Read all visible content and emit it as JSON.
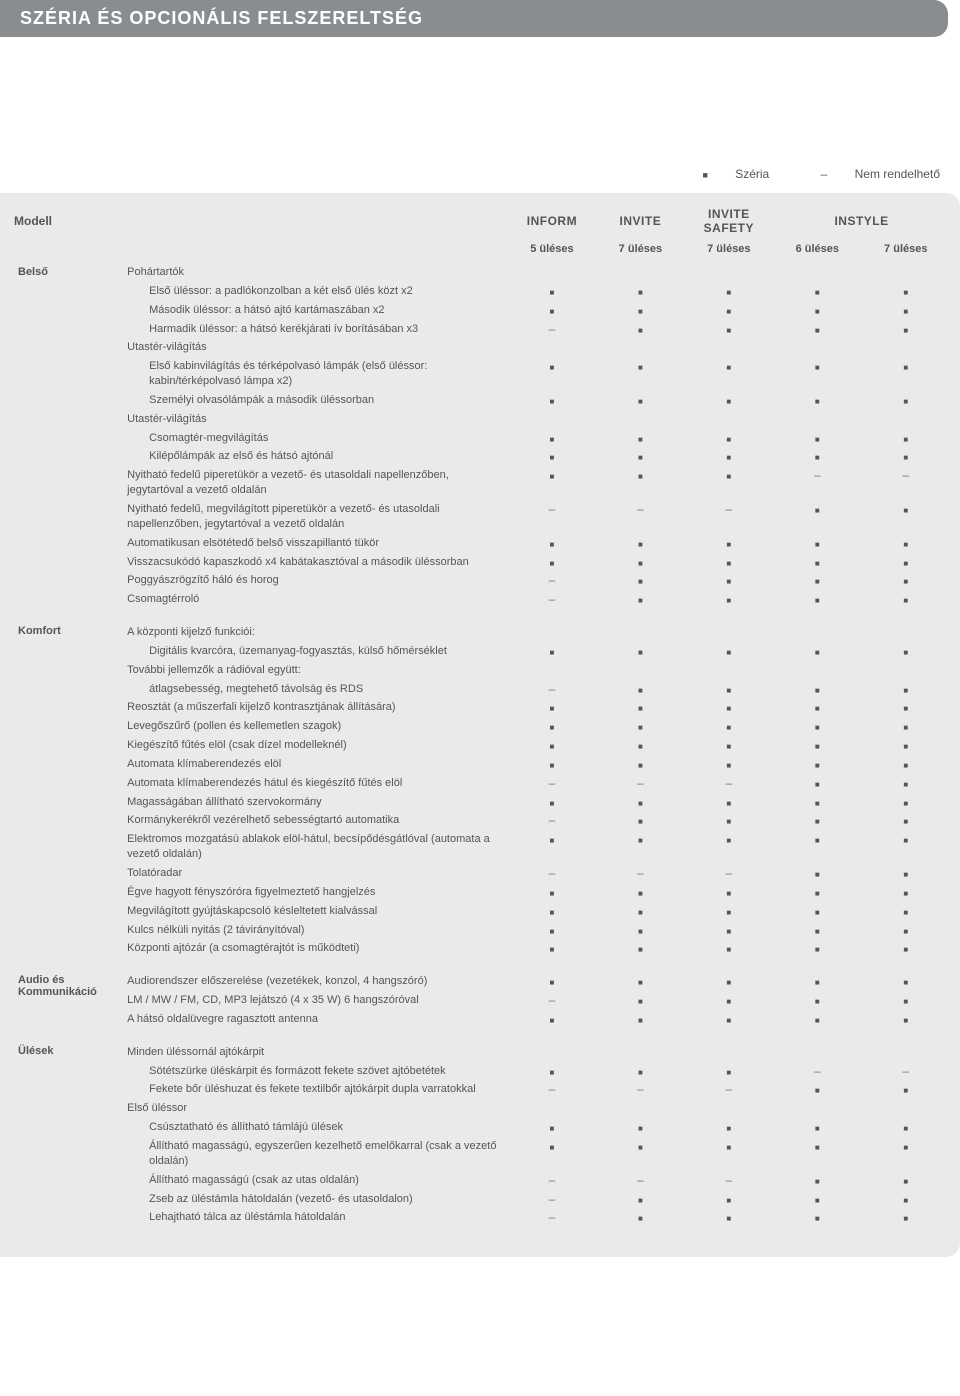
{
  "title": "SZÉRIA ÉS OPCIONÁLIS FELSZERELTSÉG",
  "legend": {
    "std_symbol": "■",
    "std_label": "Széria",
    "na_symbol": "–",
    "na_label": "Nem rendelhető"
  },
  "columns": {
    "model_label": "Modell",
    "trims": [
      "INFORM",
      "INVITE",
      "INVITE SAFETY",
      "INSTYLE"
    ],
    "subs": [
      "5 üléses",
      "7 üléses",
      "7 üléses",
      "6 üléses",
      "7 üléses"
    ]
  },
  "table_style": {
    "background": "#e9eaeb",
    "text_color": "#555555",
    "border_color": "#c9caca",
    "std_glyph": "■",
    "na_glyph": "–"
  },
  "sections": [
    {
      "category": "Belső",
      "rows": [
        {
          "t": "Pohártartók",
          "v": null
        },
        {
          "t": "Első üléssor: a padlókonzolban a két első ülés közt  x2",
          "indent": true,
          "v": [
            "s",
            "s",
            "s",
            "s",
            "s"
          ]
        },
        {
          "t": "Második üléssor: a hátsó ajtó kartámaszában x2",
          "indent": true,
          "v": [
            "s",
            "s",
            "s",
            "s",
            "s"
          ]
        },
        {
          "t": "Harmadik üléssor: a hátsó kerékjárati ív borításában x3",
          "indent": true,
          "v": [
            "n",
            "s",
            "s",
            "s",
            "s"
          ]
        },
        {
          "t": "Utastér-világítás",
          "v": null
        },
        {
          "t": "Első kabinvilágítás és térképolvasó lámpák\n(első üléssor: kabin/térképolvasó lámpa x2)",
          "indent": true,
          "v": [
            "s",
            "s",
            "s",
            "s",
            "s"
          ]
        },
        {
          "t": "Személyi olvasólámpák a második üléssorban",
          "indent": true,
          "v": [
            "s",
            "s",
            "s",
            "s",
            "s"
          ]
        },
        {
          "t": "Utastér-világítás",
          "v": null
        },
        {
          "t": "Csomagtér-megvilágítás",
          "indent": true,
          "v": [
            "s",
            "s",
            "s",
            "s",
            "s"
          ]
        },
        {
          "t": "Kilépőlámpák az első és hátsó ajtónál",
          "indent": true,
          "v": [
            "s",
            "s",
            "s",
            "s",
            "s"
          ]
        },
        {
          "t": "Nyitható fedelű piperetükör a vezető- és utasoldali napellenzőben, jegytartóval a vezető oldalán",
          "v": [
            "s",
            "s",
            "s",
            "n",
            "n"
          ]
        },
        {
          "t": "Nyitható fedelű, megvilágított piperetükör a vezető- és utasoldali napellenzőben, jegytartóval a vezető oldalán",
          "v": [
            "n",
            "n",
            "n",
            "s",
            "s"
          ]
        },
        {
          "t": "Automatikusan elsötétedő belső visszapillantó tükör",
          "v": [
            "s",
            "s",
            "s",
            "s",
            "s"
          ]
        },
        {
          "t": "Visszacsukódó kapaszkodó x4 kabátakasztóval a második üléssorban",
          "v": [
            "s",
            "s",
            "s",
            "s",
            "s"
          ]
        },
        {
          "t": "Poggyászrögzítő háló és horog",
          "v": [
            "n",
            "s",
            "s",
            "s",
            "s"
          ]
        },
        {
          "t": "Csomagtérroló",
          "v": [
            "n",
            "s",
            "s",
            "s",
            "s"
          ]
        }
      ]
    },
    {
      "category": "Komfort",
      "rows": [
        {
          "t": "A központi kijelző funkciói:",
          "v": null
        },
        {
          "t": "Digitális kvarcóra, üzemanyag-fogyasztás,\nkülső hőmérséklet",
          "indent": true,
          "v": [
            "s",
            "s",
            "s",
            "s",
            "s"
          ]
        },
        {
          "t": "További jellemzők a rádióval együtt:",
          "v": null
        },
        {
          "t": "átlagsebesség, megtehető távolság és RDS",
          "indent": true,
          "v": [
            "n",
            "s",
            "s",
            "s",
            "s"
          ]
        },
        {
          "t": "Reosztát (a műszerfali kijelző kontrasztjának állítására)",
          "v": [
            "s",
            "s",
            "s",
            "s",
            "s"
          ]
        },
        {
          "t": "Levegőszűrő (pollen és kellemetlen szagok)",
          "v": [
            "s",
            "s",
            "s",
            "s",
            "s"
          ]
        },
        {
          "t": "Kiegészítő fűtés elöl (csak dízel modelleknél)",
          "v": [
            "s",
            "s",
            "s",
            "s",
            "s"
          ]
        },
        {
          "t": "Automata klímaberendezés elöl",
          "v": [
            "s",
            "s",
            "s",
            "s",
            "s"
          ]
        },
        {
          "t": "Automata klímaberendezés hátul és kiegészítő fűtés elöl",
          "v": [
            "n",
            "n",
            "n",
            "s",
            "s"
          ]
        },
        {
          "t": "Magasságában állítható szervokormány",
          "v": [
            "s",
            "s",
            "s",
            "s",
            "s"
          ]
        },
        {
          "t": "Kormánykerékről vezérelhető sebességtartó automatika",
          "v": [
            "n",
            "s",
            "s",
            "s",
            "s"
          ]
        },
        {
          "t": "Elektromos mozgatású ablakok elöl-hátul,\nbecsípődésgátlóval (automata a vezető oldalán)",
          "v": [
            "s",
            "s",
            "s",
            "s",
            "s"
          ]
        },
        {
          "t": "Tolatóradar",
          "v": [
            "n",
            "n",
            "n",
            "s",
            "s"
          ]
        },
        {
          "t": "Égve hagyott fényszóróra figyelmeztető hangjelzés",
          "v": [
            "s",
            "s",
            "s",
            "s",
            "s"
          ]
        },
        {
          "t": "Megvilágított gyújtáskapcsoló késleltetett kialvással",
          "v": [
            "s",
            "s",
            "s",
            "s",
            "s"
          ]
        },
        {
          "t": "Kulcs nélküli nyitás (2 távirányítóval)",
          "v": [
            "s",
            "s",
            "s",
            "s",
            "s"
          ]
        },
        {
          "t": "Központi ajtózár (a csomagtérajtót is működteti)",
          "v": [
            "s",
            "s",
            "s",
            "s",
            "s"
          ]
        }
      ]
    },
    {
      "category": "Audio és Kommunikáció",
      "rows": [
        {
          "t": "Audiorendszer előszerelése (vezetékek, konzol, 4 hangszóró)",
          "v": [
            "s",
            "s",
            "s",
            "s",
            "s"
          ]
        },
        {
          "t": "LM / MW / FM, CD, MP3 lejátszó (4 x 35 W) 6 hangszóróval",
          "v": [
            "n",
            "s",
            "s",
            "s",
            "s"
          ]
        },
        {
          "t": "A hátsó oldalüvegre ragasztott antenna",
          "v": [
            "s",
            "s",
            "s",
            "s",
            "s"
          ]
        }
      ]
    },
    {
      "category": "Ülések",
      "rows": [
        {
          "t": "Minden üléssornál ajtókárpit",
          "v": null
        },
        {
          "t": "Sötétszürke üléskárpit és formázott fekete szövet ajtóbetétek",
          "indent": true,
          "v": [
            "s",
            "s",
            "s",
            "n",
            "n"
          ]
        },
        {
          "t": "Fekete bőr üléshuzat és fekete textilbőr ajtókárpit dupla varratokkal",
          "indent": true,
          "v": [
            "n",
            "n",
            "n",
            "s",
            "s"
          ]
        },
        {
          "t": "Első üléssor",
          "v": null
        },
        {
          "t": "Csúsztatható és állítható támlájú ülések",
          "indent": true,
          "v": [
            "s",
            "s",
            "s",
            "s",
            "s"
          ]
        },
        {
          "t": "Állítható magasságú, egyszerűen kezelhető emelőkarral (csak a vezető oldalán)",
          "indent": true,
          "v": [
            "s",
            "s",
            "s",
            "s",
            "s"
          ]
        },
        {
          "t": "Állítható magasságú (csak az utas oldalán)",
          "indent": true,
          "v": [
            "n",
            "n",
            "n",
            "s",
            "s"
          ]
        },
        {
          "t": "Zseb az üléstámla hátoldalán (vezető- és utasoldalon)",
          "indent": true,
          "v": [
            "n",
            "s",
            "s",
            "s",
            "s"
          ]
        },
        {
          "t": "Lehajtható tálca az üléstámla hátoldalán",
          "indent": true,
          "v": [
            "n",
            "s",
            "s",
            "s",
            "s"
          ]
        }
      ]
    }
  ]
}
